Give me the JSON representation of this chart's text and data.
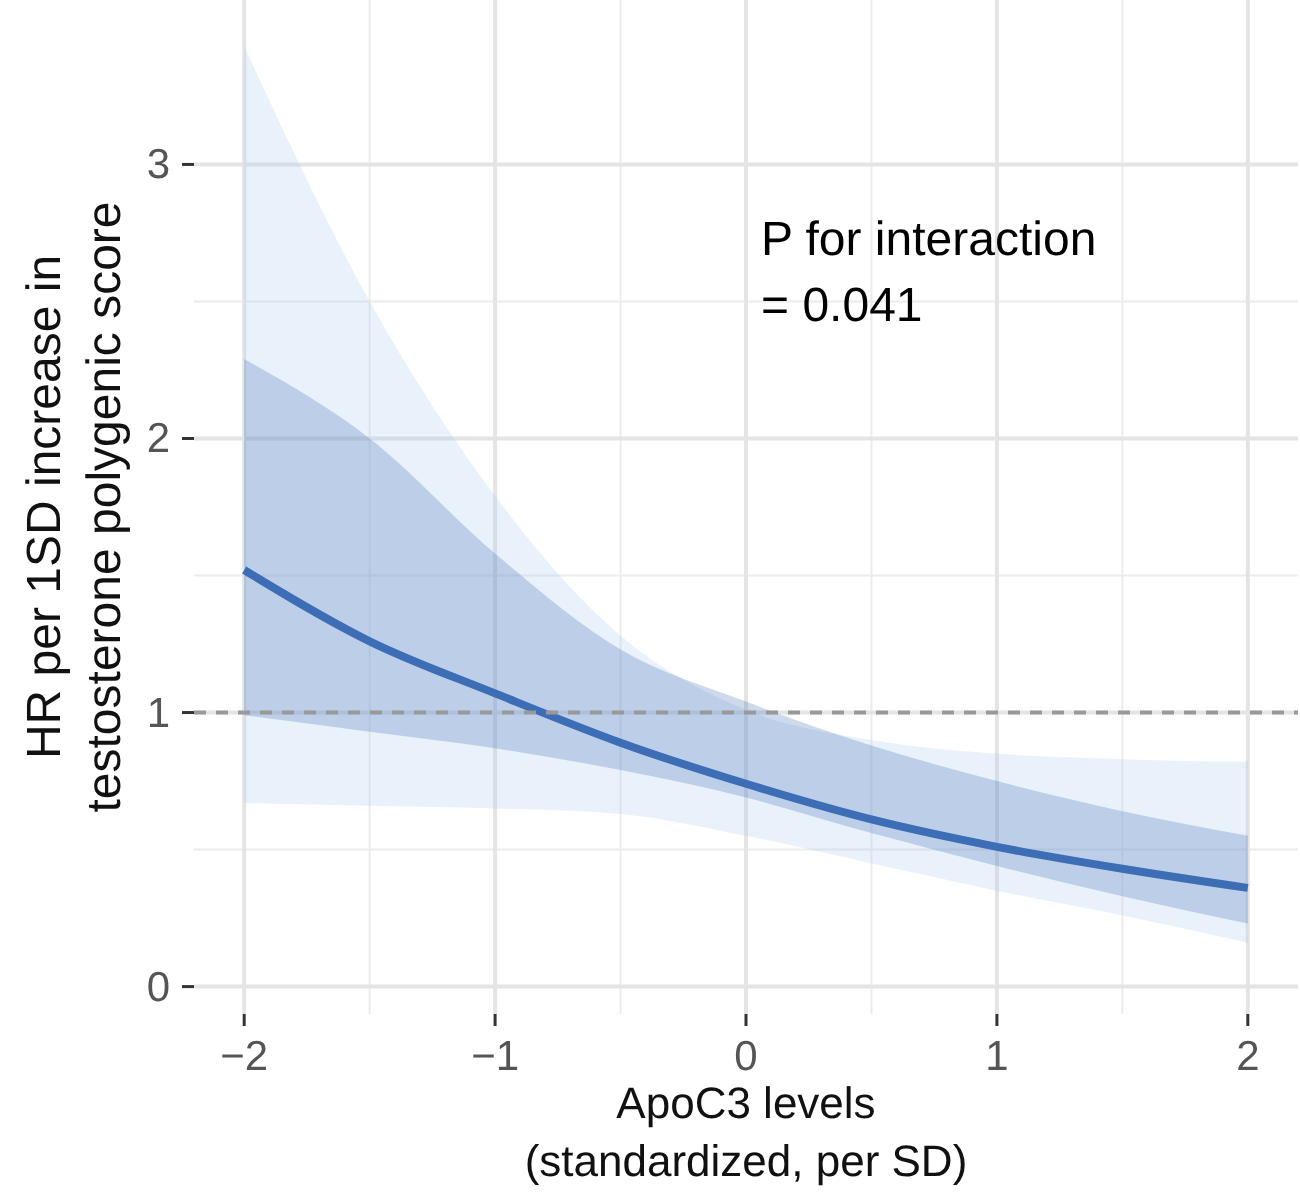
{
  "chart_data": {
    "type": "line",
    "xlabel": "ApoC3 levels\n(standardized, per SD)",
    "ylabel": "HR per 1SD increase in\ntestosterone polygenic score",
    "x": [
      -2,
      -1.5,
      -1,
      -0.5,
      0,
      0.5,
      1,
      1.5,
      2
    ],
    "series": [
      {
        "color": "#3d6db5",
        "values": [
          1.52,
          1.26,
          1.07,
          0.89,
          0.74,
          0.61,
          0.51,
          0.43,
          0.36
        ],
        "lower": [
          0.99,
          0.93,
          0.87,
          0.79,
          0.69,
          0.56,
          0.44,
          0.33,
          0.23
        ],
        "upper": [
          2.29,
          2.0,
          1.58,
          1.23,
          1.04,
          0.88,
          0.75,
          0.64,
          0.55
        ]
      },
      {
        "color": "#a9c8ec",
        "values": [
          null,
          null,
          null,
          null,
          null,
          null,
          null,
          null,
          null
        ],
        "lower": [
          0.67,
          0.66,
          0.65,
          0.63,
          0.55,
          0.45,
          0.35,
          0.26,
          0.16
        ],
        "upper": [
          3.43,
          2.5,
          1.79,
          1.28,
          1.01,
          0.9,
          0.85,
          0.83,
          0.82
        ]
      }
    ],
    "xlim": [
      -2.2,
      2.2
    ],
    "ylim": [
      -0.1,
      3.6
    ],
    "xticks": [
      {
        "value": -2,
        "label": "−2"
      },
      {
        "value": -1,
        "label": "−1"
      },
      0,
      1,
      2
    ],
    "yticks": [
      0,
      1,
      2,
      3
    ],
    "ref_lines": [
      {
        "axis": "y",
        "value": 1,
        "color": "#999999",
        "line_style": "dashed"
      }
    ],
    "annotations": [
      "P for interaction\n= 0.041"
    ],
    "grid": true,
    "line_style": "solid",
    "marker": "none"
  }
}
